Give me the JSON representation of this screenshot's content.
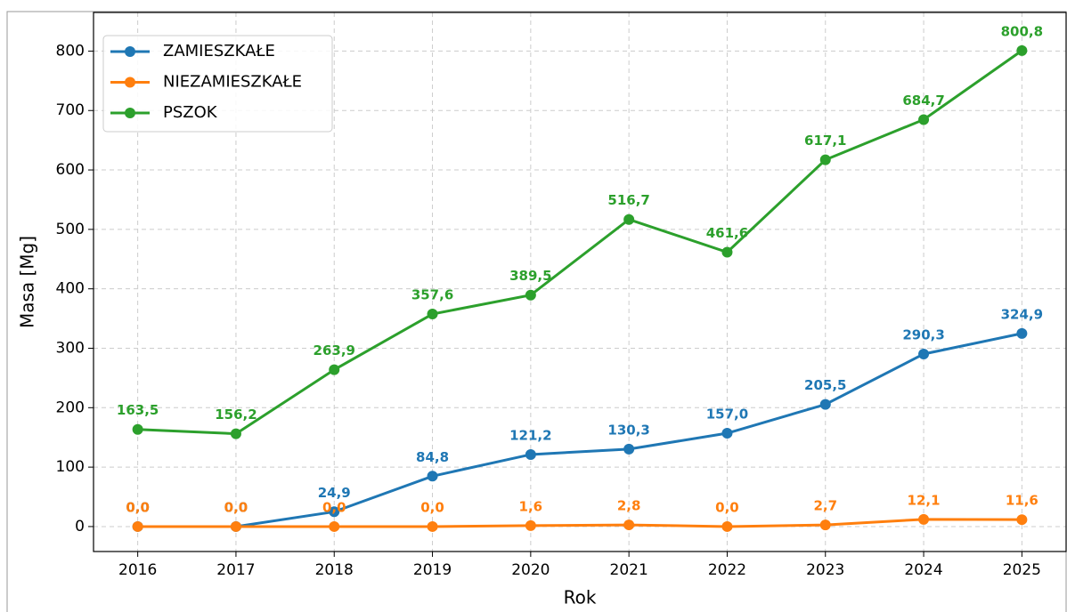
{
  "chart_data": {
    "type": "line",
    "xlabel": "Rok",
    "ylabel": "Masa [Mg]",
    "x": [
      2016,
      2017,
      2018,
      2019,
      2020,
      2021,
      2022,
      2023,
      2024,
      2025
    ],
    "series": [
      {
        "name": "ZAMIESZKAŁE",
        "color": "#1f77b4",
        "values": [
          0,
          0,
          24.9,
          84.8,
          121.2,
          130.3,
          157.0,
          205.5,
          290.3,
          324.9
        ],
        "value_labels": [
          "0,0",
          "0,0",
          "24,9",
          "84,8",
          "121,2",
          "130,3",
          "157,0",
          "205,5",
          "290,3",
          "324,9"
        ]
      },
      {
        "name": "NIEZAMIESZKAŁE",
        "color": "#ff7f0e",
        "values": [
          0,
          0,
          0,
          0,
          1.6,
          2.8,
          0,
          2.7,
          12.1,
          11.6
        ],
        "value_labels": [
          "0,0",
          "0,0",
          "0,0",
          "0,0",
          "1,6",
          "2,8",
          "0,0",
          "2,7",
          "12,1",
          "11,6"
        ]
      },
      {
        "name": "PSZOK",
        "color": "#2ca02c",
        "values": [
          163.5,
          156.2,
          263.9,
          357.6,
          389.5,
          516.7,
          461.6,
          617.1,
          684.7,
          800.8
        ],
        "value_labels": [
          "163,5",
          "156,2",
          "263,9",
          "357,6",
          "389,5",
          "516,7",
          "461,6",
          "617,1",
          "684,7",
          "800,8"
        ]
      }
    ],
    "xlim": [
      2015.55,
      2025.45
    ],
    "ylim": [
      -42,
      865
    ],
    "xticks": [
      2016,
      2017,
      2018,
      2019,
      2020,
      2021,
      2022,
      2023,
      2024,
      2025
    ],
    "yticks": [
      0,
      100,
      200,
      300,
      400,
      500,
      600,
      700,
      800
    ],
    "grid": true,
    "legend": "upper left"
  }
}
